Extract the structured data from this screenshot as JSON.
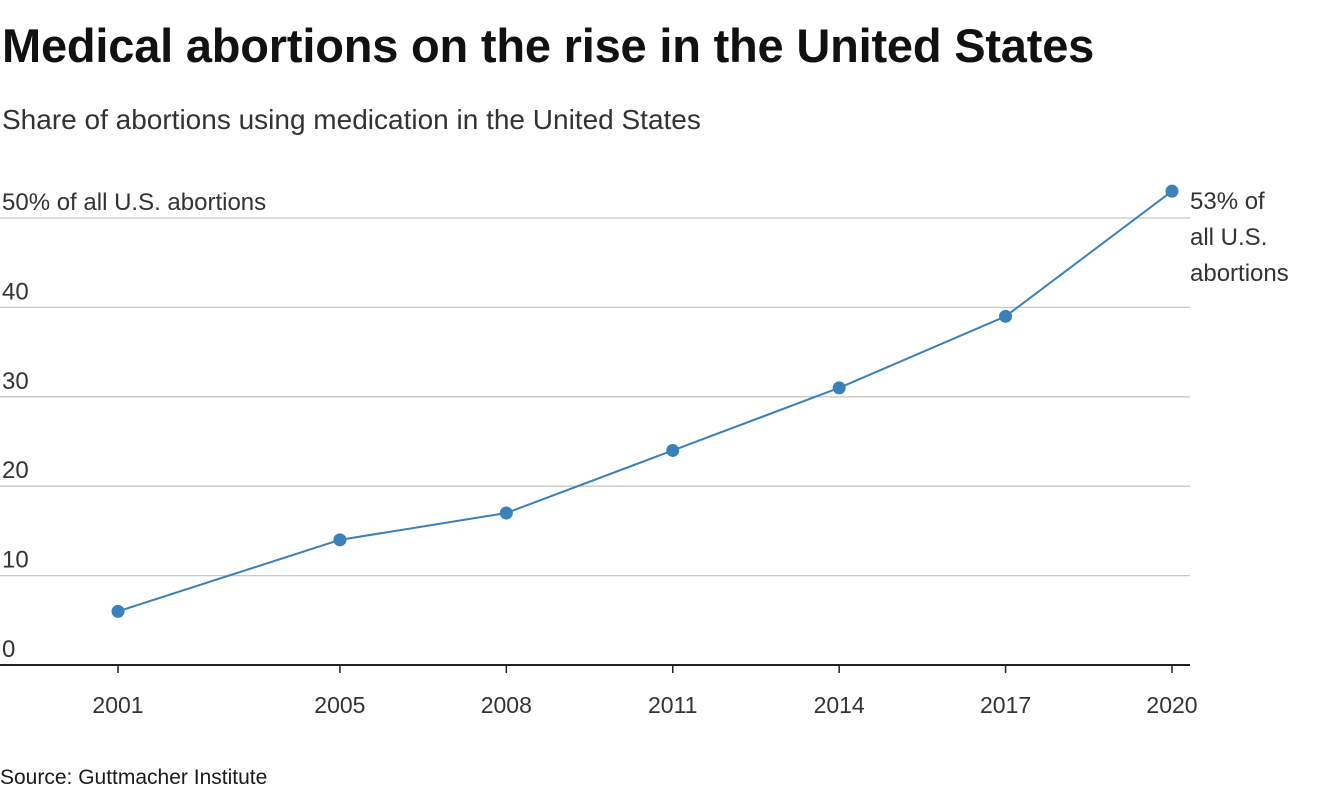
{
  "title": "Medical abortions on the rise in the United States",
  "subtitle": "Share of abortions using medication in the United States",
  "source": "Source: Guttmacher Institute",
  "chart_data": {
    "type": "line",
    "x": [
      2001,
      2005,
      2008,
      2011,
      2014,
      2017,
      2020
    ],
    "x_tick_labels": [
      "2001",
      "2005",
      "2008",
      "2011",
      "2014",
      "2017",
      "2020"
    ],
    "series": [
      {
        "values": [
          6,
          14,
          17,
          24,
          31,
          39,
          53
        ]
      }
    ],
    "y_ticks": [
      0,
      10,
      20,
      30,
      40,
      50
    ],
    "y_tick_labels": [
      "0",
      "10",
      "20",
      "30",
      "40",
      "50% of all U.S. abortions"
    ],
    "ylim": [
      0,
      53
    ],
    "end_label": [
      "53% of",
      "all U.S.",
      "abortions"
    ],
    "grid": true,
    "colors": {
      "line": "#3a81ba",
      "grid": "#c8c8c8",
      "axis": "#222222",
      "tick_text": "#333333"
    }
  }
}
